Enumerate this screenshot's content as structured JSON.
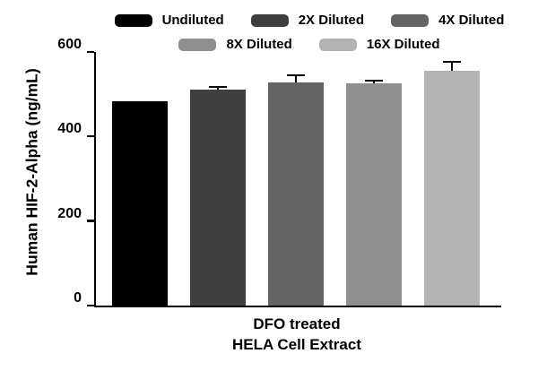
{
  "chart_data": {
    "type": "bar",
    "title": "",
    "categories": [
      "Undiluted",
      "2X Diluted",
      "4X Diluted",
      "8X Diluted",
      "16X Diluted"
    ],
    "values": [
      484,
      510,
      527,
      525,
      555
    ],
    "errors_plus": [
      0,
      6,
      15,
      6,
      19
    ],
    "bar_colors": [
      "#000000",
      "#3f3f3f",
      "#646464",
      "#8f8f8f",
      "#b3b3b3"
    ],
    "error_bar_color": "#000000",
    "ylabel": "Human HIF-2-Alpha (ng/mL)",
    "xlabel_line1": "DFO treated",
    "xlabel_line2": "HELA Cell Extract",
    "ylim": [
      0,
      600
    ],
    "yticks": [
      0,
      200,
      400,
      600
    ],
    "grid": false,
    "legend_position": "top",
    "legend_rows": [
      [
        "Undiluted",
        "2X Diluted",
        "4X Diluted"
      ],
      [
        "8X Diluted",
        "16X Diluted"
      ]
    ]
  }
}
